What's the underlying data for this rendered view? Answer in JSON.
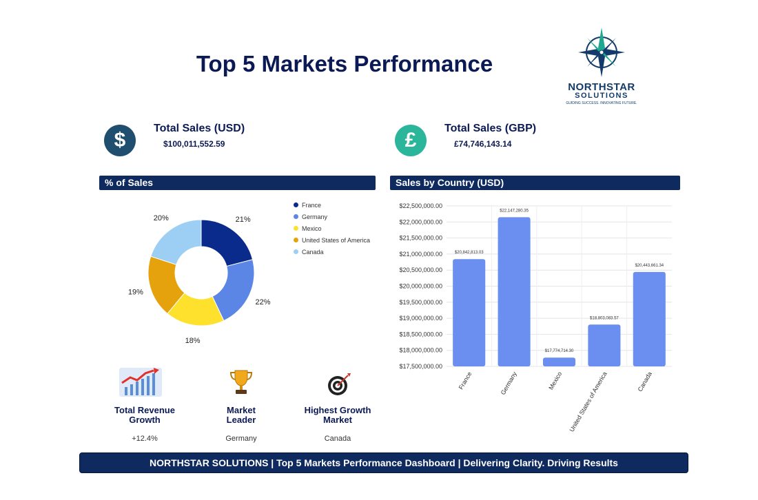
{
  "header": {
    "title": "Top 5 Markets Performance"
  },
  "logo": {
    "name": "NORTHSTAR",
    "sub": "SOLUTIONS",
    "tagline": "GUIDING SUCCESS. INNOVATING FUTURE."
  },
  "kpis": {
    "usd": {
      "title": "Total Sales (USD)",
      "value": "$100,011,552.59",
      "icon": "dollar-icon",
      "icon_glyph": "$",
      "color": "#1f4e6e"
    },
    "gbp": {
      "title": "Total Sales (GBP)",
      "value": "£74,746,143.14",
      "icon": "pound-icon",
      "icon_glyph": "£",
      "color": "#2bb59a"
    }
  },
  "panels": {
    "pie_title": "% of Sales",
    "bar_title": "Sales by Country (USD)"
  },
  "metrics": [
    {
      "label_line1": "Total Revenue",
      "label_line2": "Growth",
      "value": "+12.4%",
      "icon": "growth-chart-icon"
    },
    {
      "label_line1": "Market",
      "label_line2": "Leader",
      "value": "Germany",
      "icon": "trophy-icon"
    },
    {
      "label_line1": "Highest Growth",
      "label_line2": "Market",
      "value": "Canada",
      "icon": "target-icon"
    }
  ],
  "footer": {
    "text": "NORTHSTAR SOLUTIONS | Top 5 Markets Performance Dashboard | Delivering Clarity. Driving Results"
  },
  "chart_data": [
    {
      "type": "pie",
      "title": "% of Sales",
      "donut": true,
      "legend_position": "right",
      "categories": [
        "France",
        "Germany",
        "Mexico",
        "United States of America",
        "Canada"
      ],
      "values": [
        21,
        22,
        18,
        19,
        20
      ],
      "labels": [
        "21%",
        "22%",
        "18%",
        "19%",
        "20%"
      ],
      "colors": [
        "#0a2a8c",
        "#5b86e5",
        "#fde12d",
        "#e6a20c",
        "#9dcff5"
      ]
    },
    {
      "type": "bar",
      "title": "Sales by Country (USD)",
      "categories": [
        "France",
        "Germany",
        "Mexico",
        "United States of America",
        "Canada"
      ],
      "values": [
        20842813.03,
        22147280.35,
        17774714.3,
        18803083.57,
        20443661.34
      ],
      "data_labels": [
        "$20,842,813.03",
        "$22,147,280.35",
        "$17,774,714.30",
        "$18,803,083.57",
        "$20,443,661.34"
      ],
      "ylim": [
        17500000,
        22500000
      ],
      "yticks": [
        17500000,
        18000000,
        18500000,
        19000000,
        19500000,
        20000000,
        20500000,
        21000000,
        21500000,
        22000000,
        22500000
      ],
      "ytick_labels": [
        "$17,500,000.00",
        "$18,000,000.00",
        "$18,500,000.00",
        "$19,000,000.00",
        "$19,500,000.00",
        "$20,000,000.00",
        "$20,500,000.00",
        "$21,000,000.00",
        "$21,500,000.00",
        "$22,000,000.00",
        "$22,500,000.00"
      ],
      "color": "#6a8ff0",
      "grid": true
    }
  ]
}
